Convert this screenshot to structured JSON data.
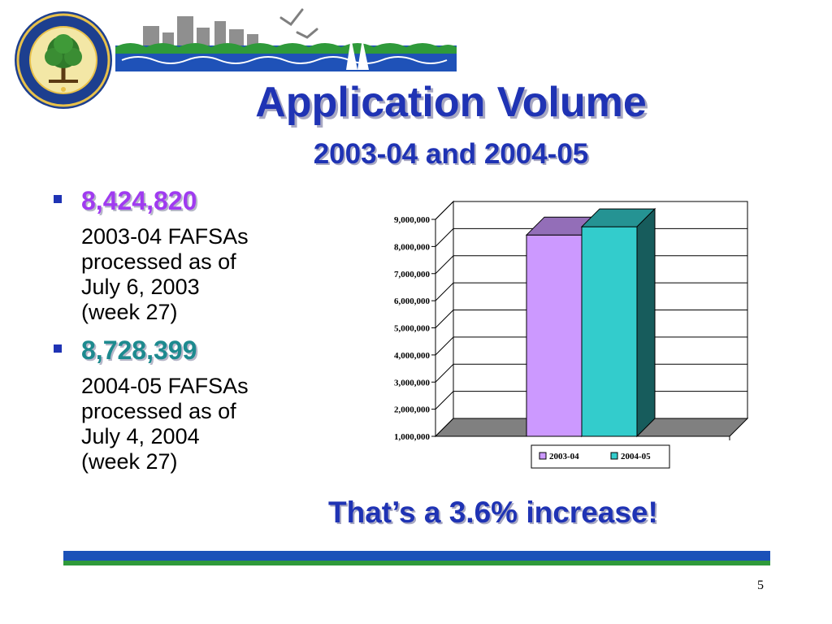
{
  "slide": {
    "title": "Application Volume",
    "subtitle": "2003-04 and 2004-05",
    "bullets": [
      {
        "value": "8,424,820",
        "description": "2003-04 FAFSAs\nprocessed as of\nJuly 6, 2003\n(week 27)",
        "color": "#a03bf0"
      },
      {
        "value": "8,728,399",
        "description": "2004-05 FAFSAs\nprocessed as of\nJuly 4, 2004\n(week 27)",
        "color": "#1d8a8f"
      }
    ],
    "callout": "That’s a 3.6% increase!",
    "page_number": "5",
    "logo_text": "DEPARTMENT OF EDUCATION · UNITED STATES OF AMERICA"
  },
  "colors": {
    "title_blue": "#1f33b4",
    "rule_blue": "#1c52b8",
    "rule_green": "#2f9a3a"
  },
  "chart_data": {
    "type": "bar",
    "categories": [
      "2003-04",
      "2004-05"
    ],
    "values": [
      8424820,
      8728399
    ],
    "series": [
      {
        "name": "2003-04",
        "value": 8424820,
        "color": "#cc99ff"
      },
      {
        "name": "2004-05",
        "value": 8728399,
        "color": "#33cccc"
      }
    ],
    "yticks": [
      "1,000,000",
      "2,000,000",
      "3,000,000",
      "4,000,000",
      "5,000,000",
      "6,000,000",
      "7,000,000",
      "8,000,000",
      "9,000,000"
    ],
    "ylim": [
      1000000,
      9000000
    ],
    "three_d": true,
    "grid": true,
    "legend_position": "bottom"
  }
}
